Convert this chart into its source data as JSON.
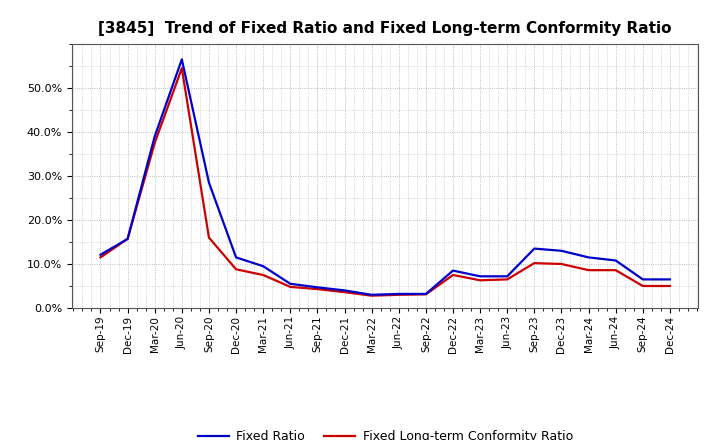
{
  "title": "[3845]  Trend of Fixed Ratio and Fixed Long-term Conformity Ratio",
  "x_labels": [
    "Sep-19",
    "Dec-19",
    "Mar-20",
    "Jun-20",
    "Sep-20",
    "Dec-20",
    "Mar-21",
    "Jun-21",
    "Sep-21",
    "Dec-21",
    "Mar-22",
    "Jun-22",
    "Sep-22",
    "Dec-22",
    "Mar-23",
    "Jun-23",
    "Sep-23",
    "Dec-23",
    "Mar-24",
    "Jun-24",
    "Sep-24",
    "Dec-24"
  ],
  "fixed_ratio": [
    0.121,
    0.157,
    0.39,
    0.565,
    0.285,
    0.115,
    0.095,
    0.055,
    0.047,
    0.04,
    0.03,
    0.032,
    0.032,
    0.085,
    0.072,
    0.072,
    0.135,
    0.13,
    0.115,
    0.108,
    0.065,
    0.065
  ],
  "fixed_lt_ratio": [
    0.115,
    0.157,
    0.375,
    0.545,
    0.16,
    0.088,
    0.075,
    0.048,
    0.043,
    0.036,
    0.028,
    0.03,
    0.031,
    0.075,
    0.063,
    0.065,
    0.102,
    0.1,
    0.086,
    0.086,
    0.05,
    0.05
  ],
  "fixed_ratio_color": "#0000cc",
  "fixed_lt_ratio_color": "#cc0000",
  "background_color": "#ffffff",
  "grid_color": "#aaaaaa",
  "ylim": [
    0.0,
    0.6
  ],
  "yticks": [
    0.0,
    0.1,
    0.2,
    0.3,
    0.4,
    0.5
  ],
  "legend_fixed": "Fixed Ratio",
  "legend_lt": "Fixed Long-term Conformity Ratio",
  "linewidth": 1.6
}
